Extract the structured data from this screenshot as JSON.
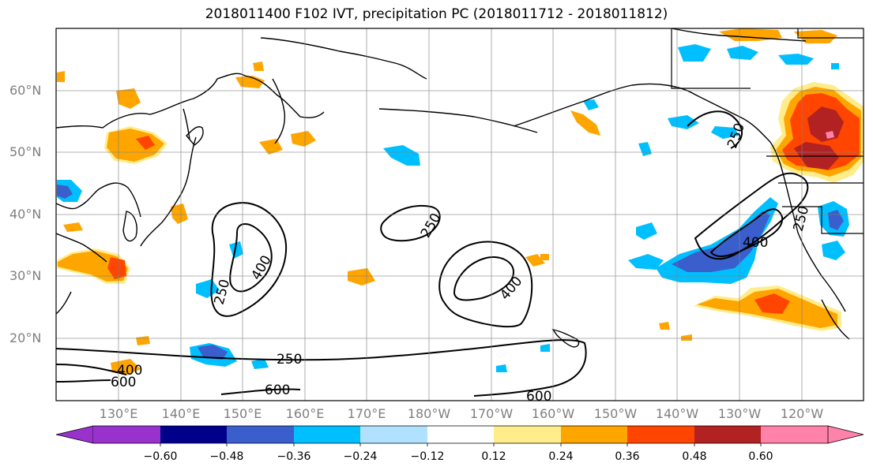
{
  "title": "2018011400 F102 IVT, precipitation PC (2018011712 - 2018011812)",
  "map": {
    "projection": "equirectangular",
    "lon_range_deg": [
      120,
      250
    ],
    "lat_range_deg": [
      10,
      70
    ],
    "gridlines": true,
    "lat_labels": [
      "60°N",
      "50°N",
      "40°N",
      "30°N",
      "20°N"
    ],
    "lon_labels": [
      "130°E",
      "140°E",
      "150°E",
      "160°E",
      "170°E",
      "180°W",
      "170°W",
      "160°W",
      "150°W",
      "140°W",
      "130°W",
      "120°W"
    ],
    "ivt_contour_labels": [
      "250",
      "400",
      "250",
      "400",
      "250",
      "400",
      "600",
      "250",
      "600",
      "600",
      "400",
      "250"
    ]
  },
  "colorbar": {
    "ticks": [
      "−0.60",
      "−0.48",
      "−0.36",
      "−0.24",
      "−0.12",
      "0.12",
      "0.24",
      "0.36",
      "0.48",
      "0.60"
    ],
    "colors": [
      "#9932cc",
      "#00008b",
      "#3a5fcd",
      "#00bfff",
      "#b0e2ff",
      "#ffffff",
      "#ffec8b",
      "#ffa500",
      "#ff4500",
      "#b22222",
      "#ff82ab"
    ],
    "extend": "both"
  }
}
